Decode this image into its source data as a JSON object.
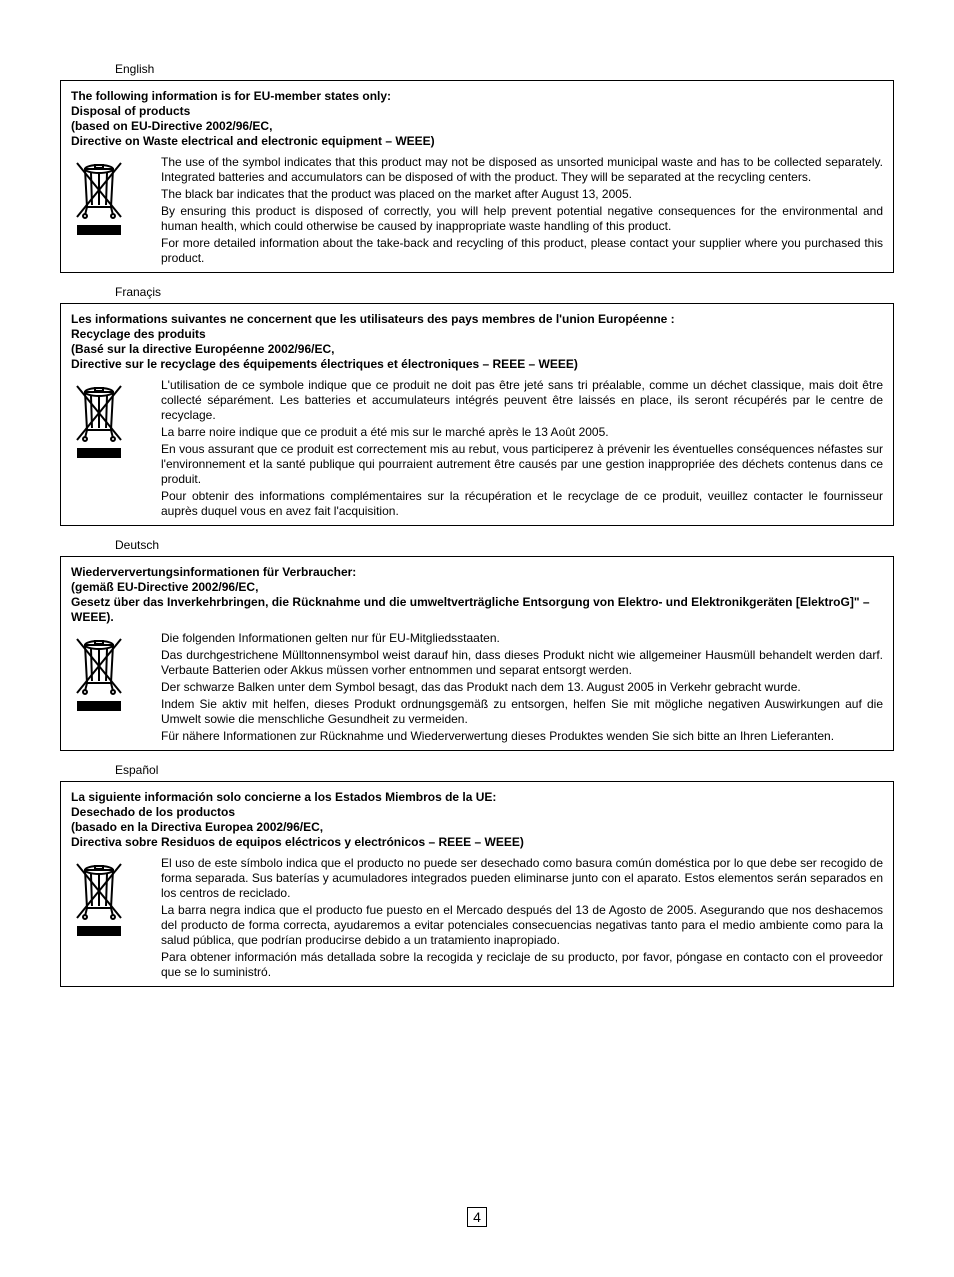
{
  "pageNumber": "4",
  "sections": [
    {
      "langLabel": "English",
      "headerLines": [
        "The following information is for EU-member states only:",
        "Disposal of products",
        "(based on EU-Directive 2002/96/EC,",
        "Directive on Waste electrical and electronic equipment – WEEE)"
      ],
      "bodyParas": [
        "The use of the symbol indicates that this product may not be disposed as unsorted municipal waste and has to be collected separately. Integrated batteries and accumulators can be disposed of with the product. They will be separated at the recycling centers.",
        "The black bar indicates that the product was placed on the market after August 13, 2005.",
        "By ensuring this product is disposed of correctly, you will help prevent potential negative consequences for the environmental and human health, which could otherwise be caused by inappropriate waste handling of this product.",
        "For more detailed information about the take-back and recycling of this product, please contact your supplier where you purchased this product."
      ]
    },
    {
      "langLabel": "Franaçis",
      "headerLines": [
        "Les informations suivantes ne concernent que les utilisateurs des pays membres de l'union Européenne :",
        "Recyclage des produits",
        "(Basé sur la directive Européenne 2002/96/EC,",
        "Directive sur le recyclage des équipements électriques et électroniques – REEE – WEEE)"
      ],
      "bodyParas": [
        "L'utilisation de ce symbole indique que ce produit ne doit pas être jeté sans tri préalable, comme un déchet classique, mais doit être collecté séparément. Les batteries et accumulateurs intégrés peuvent être laissés en place, ils seront récupérés par le centre de recyclage.",
        "La barre noire indique que ce produit a été mis sur le marché après le 13 Août 2005.",
        "En vous assurant que ce produit est correctement mis au rebut, vous participerez à prévenir les éventuelles conséquences néfastes sur l'environnement et la santé publique qui pourraient autrement être causés par une gestion inappropriée des déchets contenus dans ce produit.",
        "Pour obtenir des informations complémentaires sur la récupération et le recyclage de ce produit, veuillez contacter le fournisseur auprès duquel vous en avez fait l'acquisition."
      ]
    },
    {
      "langLabel": "Deutsch",
      "headerLines": [
        "Wiederververtungsinformationen für Verbraucher:",
        "(gemäß EU-Directive 2002/96/EC,",
        "Gesetz über das Inverkehrbringen, die Rücknahme und die umweltverträgliche Entsorgung von Elektro- und Elektronikgeräten [ElektroG]\" – WEEE)."
      ],
      "bodyParas": [
        "Die folgenden Informationen gelten nur für EU-Mitgliedsstaaten.",
        "Das durchgestrichene Mülltonnensymbol weist darauf hin, dass dieses Produkt nicht wie allgemeiner Hausmüll behandelt werden darf. Verbaute Batterien oder Akkus müssen vorher entnommen und separat entsorgt werden.",
        "Der schwarze Balken unter dem Symbol besagt, das das Produkt nach dem 13. August 2005 in Verkehr gebracht wurde.",
        "Indem Sie aktiv mit helfen, dieses Produkt ordnungsgemäß zu entsorgen, helfen Sie mit mögliche negativen Auswirkungen auf die Umwelt sowie die menschliche Gesundheit zu vermeiden.",
        "Für nähere Informationen zur Rücknahme und Wiederverwertung dieses Produktes wenden Sie sich bitte an Ihren Lieferanten."
      ]
    },
    {
      "langLabel": "Español",
      "headerLines": [
        "La siguiente información solo concierne a los Estados Miembros de la UE:",
        "Desechado de los productos",
        "(basado en la Directiva Europea 2002/96/EC,",
        "Directiva sobre Residuos de equipos eléctricos y electrónicos – REEE – WEEE)"
      ],
      "bodyParas": [
        "El uso de este símbolo indica que el producto no puede ser desechado como basura común doméstica por lo que debe ser recogido de forma separada. Sus baterías y acumuladores integrados pueden eliminarse junto con el aparato. Estos elementos serán separados en los centros de reciclado.",
        "La barra negra indica que el producto fue puesto en el Mercado después del 13 de Agosto de 2005. Asegurando que nos deshacemos del producto de forma correcta, ayudaremos a evitar potenciales consecuencias negativas tanto para el medio ambiente como para la salud pública, que podrían producirse debido a un tratamiento inapropiado.",
        "Para obtener información más detallada sobre la recogida y reciclaje de su producto, por favor, póngase en contacto con el proveedor que se lo suministró."
      ]
    }
  ]
}
